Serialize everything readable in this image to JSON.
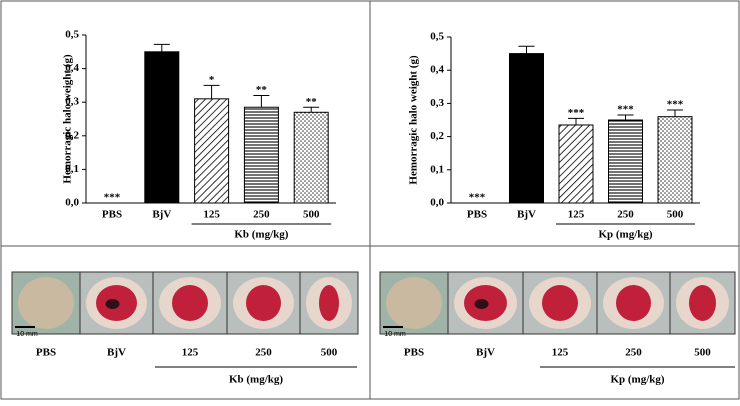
{
  "chart_data": [
    {
      "type": "bar",
      "ylabel": "Hemorragic halo weight (g)",
      "categories": [
        "PBS",
        "BjV",
        "125",
        "250",
        "500"
      ],
      "values": [
        0,
        0.45,
        0.31,
        0.285,
        0.27
      ],
      "errors": [
        null,
        0.022,
        0.04,
        0.035,
        0.015
      ],
      "significance": [
        "***",
        null,
        "*",
        "**",
        "**"
      ],
      "fills": [
        "white",
        "black",
        "diagonal",
        "stripes",
        "dots"
      ],
      "group_label": "Kb (mg/kg)",
      "ylim": [
        0,
        0.5
      ],
      "yticks": [
        {
          "value": 0,
          "label": "0,0"
        },
        {
          "value": 0.1,
          "label": "0,1"
        },
        {
          "value": 0.2,
          "label": "0,2"
        },
        {
          "value": 0.3,
          "label": "0,3"
        },
        {
          "value": 0.4,
          "label": "0,4"
        },
        {
          "value": 0.5,
          "label": "0,5"
        }
      ]
    },
    {
      "type": "bar",
      "ylabel": "Hemorragic halo weight (g)",
      "categories": [
        "PBS",
        "BjV",
        "125",
        "250",
        "500"
      ],
      "values": [
        0,
        0.45,
        0.235,
        0.25,
        0.26
      ],
      "errors": [
        null,
        0.022,
        0.02,
        0.015,
        0.02
      ],
      "significance": [
        "***",
        null,
        "***",
        "***",
        "***"
      ],
      "fills": [
        "white",
        "black",
        "diagonal",
        "stripes",
        "dots"
      ],
      "group_label": "Kp (mg/kg)",
      "ylim": [
        0,
        0.5
      ],
      "yticks": [
        {
          "value": 0,
          "label": "0,0"
        },
        {
          "value": 0.1,
          "label": "0,1"
        },
        {
          "value": 0.2,
          "label": "0,2"
        },
        {
          "value": 0.3,
          "label": "0,3"
        },
        {
          "value": 0.4,
          "label": "0,4"
        },
        {
          "value": 0.5,
          "label": "0,5"
        }
      ]
    }
  ],
  "photo_panels": [
    {
      "labels": [
        "PBS",
        "BjV",
        "125",
        "250",
        "500"
      ],
      "group_label": "Kb (mg/kg)",
      "scale_bar": "10 mm"
    },
    {
      "labels": [
        "PBS",
        "BjV",
        "125",
        "250",
        "500"
      ],
      "group_label": "Kp (mg/kg)",
      "scale_bar": "10 mm"
    }
  ]
}
